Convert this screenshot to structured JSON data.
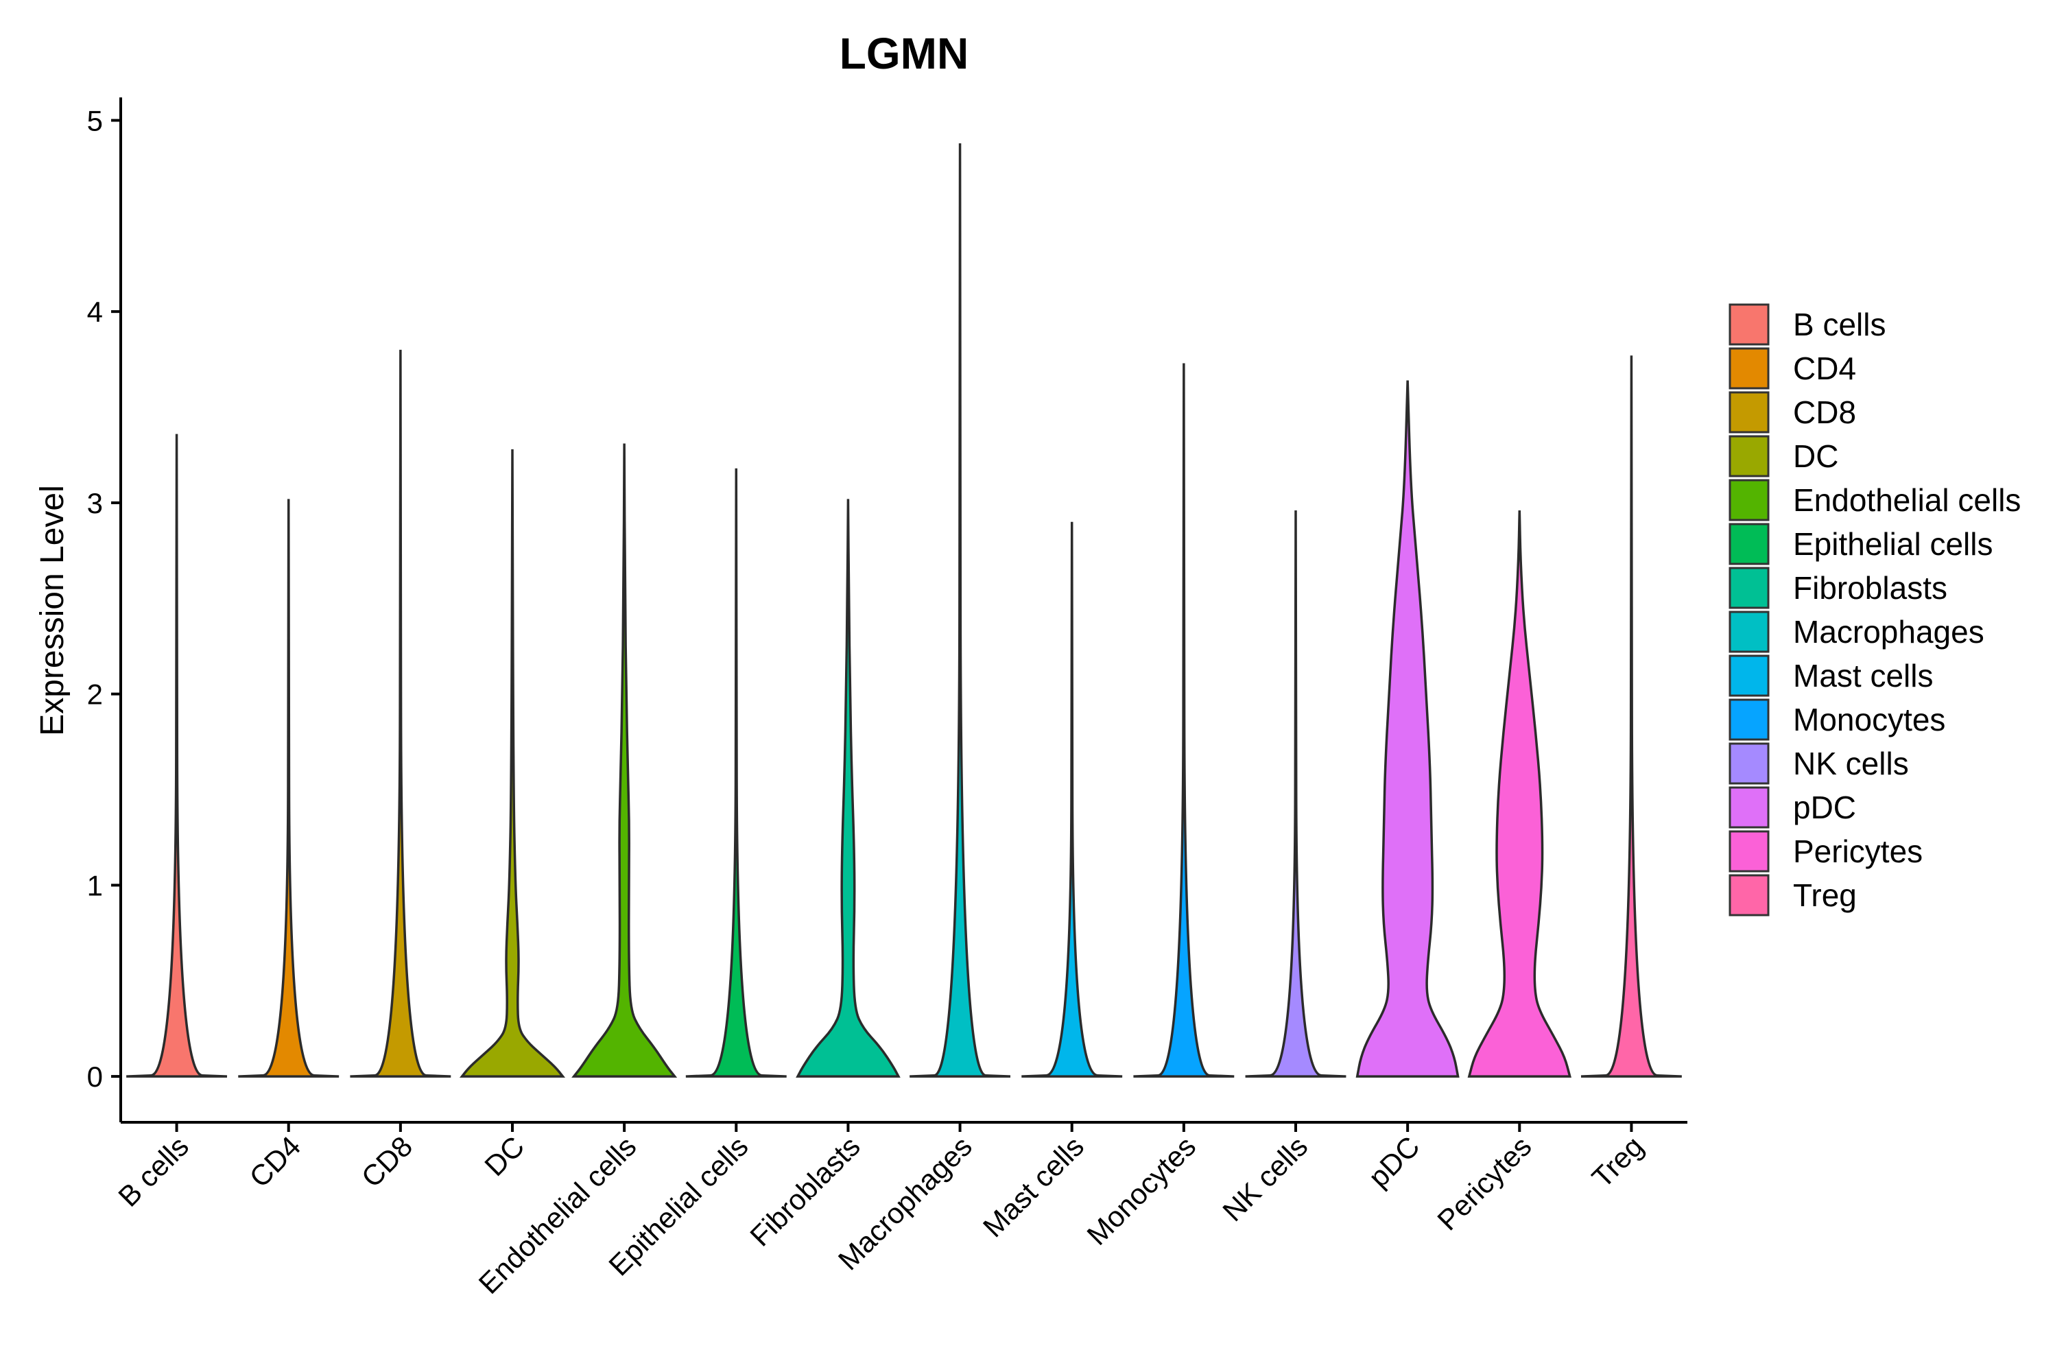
{
  "chart_data": {
    "type": "violin",
    "title": "LGMN",
    "xlabel": "",
    "ylabel": "Expression Level",
    "ylim": [
      -0.24,
      5.12
    ],
    "yticks": [
      0,
      1,
      2,
      3,
      4,
      5
    ],
    "legend": "right",
    "grid": false,
    "categories": [
      "B cells",
      "CD4",
      "CD8",
      "DC",
      "Endothelial cells",
      "Epithelial cells",
      "Fibroblasts",
      "Macrophages",
      "Mast cells",
      "Monocytes",
      "NK cells",
      "pDC",
      "Pericytes",
      "Treg"
    ],
    "colors": [
      "#F8766D",
      "#E38900",
      "#C49A00",
      "#99A800",
      "#53B400",
      "#00BC56",
      "#00C094",
      "#00BFC4",
      "#00B6EB",
      "#06A4FF",
      "#A58AFF",
      "#DF70F8",
      "#FB61D7",
      "#FF66A8"
    ],
    "max_values": [
      3.36,
      3.02,
      3.8,
      3.28,
      3.31,
      3.18,
      3.02,
      4.88,
      2.9,
      3.73,
      2.96,
      3.64,
      2.96,
      3.77
    ],
    "density_profiles": [
      [
        [
          0,
          1.0
        ],
        [
          0.01,
          0.02
        ],
        [
          3.36,
          0.0
        ]
      ],
      [
        [
          0,
          1.0
        ],
        [
          0.01,
          0.02
        ],
        [
          3.02,
          0.0
        ]
      ],
      [
        [
          0,
          1.0
        ],
        [
          0.01,
          0.02
        ],
        [
          3.8,
          0.0
        ]
      ],
      [
        [
          0,
          1.0
        ],
        [
          0.05,
          0.85
        ],
        [
          0.12,
          0.55
        ],
        [
          0.18,
          0.3
        ],
        [
          0.25,
          0.12
        ],
        [
          0.4,
          0.1
        ],
        [
          0.6,
          0.13
        ],
        [
          0.8,
          0.1
        ],
        [
          1.0,
          0.06
        ],
        [
          1.5,
          0.02
        ],
        [
          3.28,
          0.0
        ]
      ],
      [
        [
          0,
          1.0
        ],
        [
          0.05,
          0.85
        ],
        [
          0.15,
          0.6
        ],
        [
          0.25,
          0.3
        ],
        [
          0.35,
          0.12
        ],
        [
          0.6,
          0.09
        ],
        [
          1.0,
          0.09
        ],
        [
          1.3,
          0.1
        ],
        [
          1.6,
          0.07
        ],
        [
          2.0,
          0.04
        ],
        [
          2.5,
          0.015
        ],
        [
          3.31,
          0.0
        ]
      ],
      [
        [
          0,
          1.0
        ],
        [
          0.01,
          0.02
        ],
        [
          3.18,
          0.0
        ]
      ],
      [
        [
          0,
          1.0
        ],
        [
          0.05,
          0.9
        ],
        [
          0.15,
          0.65
        ],
        [
          0.25,
          0.3
        ],
        [
          0.35,
          0.13
        ],
        [
          0.6,
          0.1
        ],
        [
          0.9,
          0.13
        ],
        [
          1.2,
          0.12
        ],
        [
          1.6,
          0.07
        ],
        [
          2.0,
          0.04
        ],
        [
          2.5,
          0.015
        ],
        [
          3.02,
          0.0
        ]
      ],
      [
        [
          0,
          1.0
        ],
        [
          0.01,
          0.02
        ],
        [
          4.88,
          0.0
        ]
      ],
      [
        [
          0,
          1.0
        ],
        [
          0.01,
          0.02
        ],
        [
          2.9,
          0.0
        ]
      ],
      [
        [
          0,
          1.0
        ],
        [
          0.01,
          0.02
        ],
        [
          3.73,
          0.0
        ]
      ],
      [
        [
          0,
          1.0
        ],
        [
          0.01,
          0.02
        ],
        [
          2.96,
          0.0
        ]
      ],
      [
        [
          0,
          1.0
        ],
        [
          0.1,
          0.93
        ],
        [
          0.2,
          0.78
        ],
        [
          0.35,
          0.45
        ],
        [
          0.45,
          0.37
        ],
        [
          0.6,
          0.4
        ],
        [
          0.8,
          0.48
        ],
        [
          1.0,
          0.5
        ],
        [
          1.3,
          0.47
        ],
        [
          1.6,
          0.45
        ],
        [
          2.0,
          0.37
        ],
        [
          2.4,
          0.28
        ],
        [
          2.8,
          0.15
        ],
        [
          3.1,
          0.06
        ],
        [
          3.64,
          0.0
        ]
      ],
      [
        [
          0,
          1.0
        ],
        [
          0.1,
          0.9
        ],
        [
          0.2,
          0.7
        ],
        [
          0.35,
          0.38
        ],
        [
          0.45,
          0.3
        ],
        [
          0.6,
          0.3
        ],
        [
          0.8,
          0.38
        ],
        [
          1.0,
          0.44
        ],
        [
          1.2,
          0.46
        ],
        [
          1.5,
          0.42
        ],
        [
          1.8,
          0.32
        ],
        [
          2.1,
          0.2
        ],
        [
          2.4,
          0.08
        ],
        [
          2.7,
          0.02
        ],
        [
          2.96,
          0.0
        ]
      ],
      [
        [
          0,
          1.0
        ],
        [
          0.01,
          0.02
        ],
        [
          3.77,
          0.0
        ]
      ]
    ]
  }
}
